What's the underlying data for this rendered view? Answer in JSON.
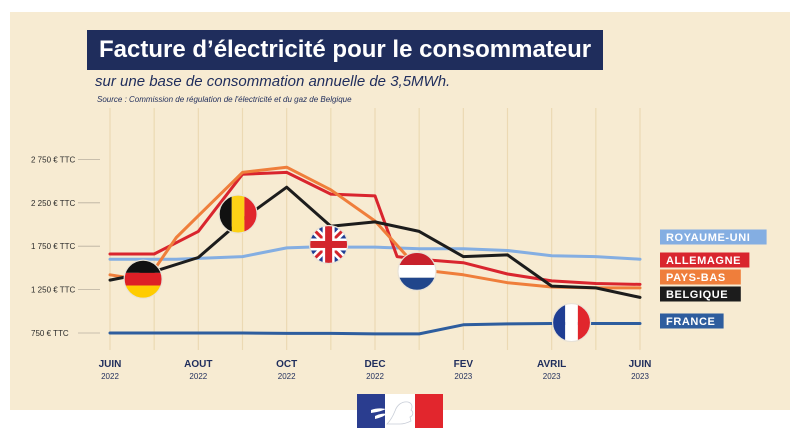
{
  "header": {
    "title": "Facture d’électricité pour le consommateur",
    "subtitle": "sur une base de consommation annuelle de 3,5MWh.",
    "source": "Source : Commission de régulation de l'électricité et du gaz de Belgique"
  },
  "logo": {
    "icon": "republique-francaise-marianne-logo"
  },
  "chart_data": {
    "type": "line",
    "x": [
      0,
      1,
      2,
      3,
      4,
      5,
      6,
      7,
      8,
      9,
      10,
      11,
      12,
      13,
      14,
      15,
      16,
      17,
      18,
      19,
      20,
      21,
      22,
      23,
      24,
      25,
      26
    ],
    "x_ticks": [
      {
        "x": 0,
        "month": "JUIN",
        "year": "2022"
      },
      {
        "x": 4,
        "month": "AOUT",
        "year": "2022"
      },
      {
        "x": 8,
        "month": "OCT",
        "year": "2022"
      },
      {
        "x": 12,
        "month": "DEC",
        "year": "2022"
      },
      {
        "x": 16,
        "month": "FEV",
        "year": "2023"
      },
      {
        "x": 20,
        "month": "AVRIL",
        "year": "2023"
      },
      {
        "x": 24,
        "month": "JUIN",
        "year": "2023"
      }
    ],
    "y_ticks": [
      {
        "value": 750,
        "label": "750 € TTC"
      },
      {
        "value": 1250,
        "label": "1 250 € TTC"
      },
      {
        "value": 1750,
        "label": "1 750 € TTC"
      },
      {
        "value": 2250,
        "label": "2 250 € TTC"
      },
      {
        "value": 2750,
        "label": "2 750 € TTC"
      }
    ],
    "ylim": [
      650,
      2850
    ],
    "xlim": [
      0,
      24
    ],
    "grid": "vertical",
    "series": [
      {
        "name": "ROYAUME-UNI",
        "color": "#84aee2",
        "legend_text_color": "#ffffff",
        "flag": "uk",
        "x": [
          0,
          3,
          5,
          6,
          8,
          9,
          12,
          14,
          16,
          18,
          20,
          22,
          24
        ],
        "y": [
          1600,
          1600,
          1620,
          1630,
          1730,
          1740,
          1740,
          1720,
          1720,
          1700,
          1640,
          1630,
          1600
        ]
      },
      {
        "name": "ALLEMAGNE",
        "color": "#d9252e",
        "legend_text_color": "#ffffff",
        "flag": "germany",
        "x": [
          0,
          2,
          4,
          6,
          8,
          10,
          12,
          13,
          14,
          16,
          18,
          20,
          22,
          24
        ],
        "y": [
          1660,
          1660,
          1920,
          2580,
          2600,
          2350,
          2330,
          1630,
          1600,
          1560,
          1430,
          1350,
          1320,
          1310
        ]
      },
      {
        "name": "PAYS-BAS",
        "color": "#ef7e3b",
        "legend_text_color": "#ffffff",
        "flag": "netherlands",
        "x": [
          0,
          1,
          2,
          3,
          4,
          6,
          8,
          10,
          12,
          14,
          16,
          18,
          20,
          22,
          24
        ],
        "y": [
          1420,
          1380,
          1480,
          1850,
          2100,
          2600,
          2660,
          2400,
          2040,
          1480,
          1420,
          1330,
          1280,
          1270,
          1270
        ]
      },
      {
        "name": "BELGIQUE",
        "color": "#1c1c1c",
        "legend_text_color": "#ffffff",
        "flag": "belgium",
        "x": [
          0,
          2,
          4,
          6,
          8,
          10,
          12,
          14,
          16,
          18,
          20,
          22,
          24
        ],
        "y": [
          1360,
          1460,
          1620,
          2060,
          2430,
          1980,
          2030,
          1920,
          1630,
          1650,
          1290,
          1270,
          1160
        ]
      },
      {
        "name": "FRANCE",
        "color": "#2e5d9e",
        "legend_text_color": "#ffffff",
        "flag": "france",
        "x": [
          0,
          2,
          4,
          6,
          8,
          10,
          12,
          14,
          16,
          18,
          20,
          22,
          24
        ],
        "y": [
          750,
          750,
          750,
          750,
          745,
          745,
          740,
          740,
          845,
          855,
          860,
          860,
          860
        ]
      }
    ],
    "flags": [
      {
        "country": "germany",
        "x": 1.5,
        "y": 1370
      },
      {
        "country": "belgium",
        "x": 5.8,
        "y": 2120
      },
      {
        "country": "uk",
        "x": 9.9,
        "y": 1770
      },
      {
        "country": "netherlands",
        "x": 13.9,
        "y": 1460
      },
      {
        "country": "france",
        "x": 20.9,
        "y": 870
      }
    ]
  }
}
